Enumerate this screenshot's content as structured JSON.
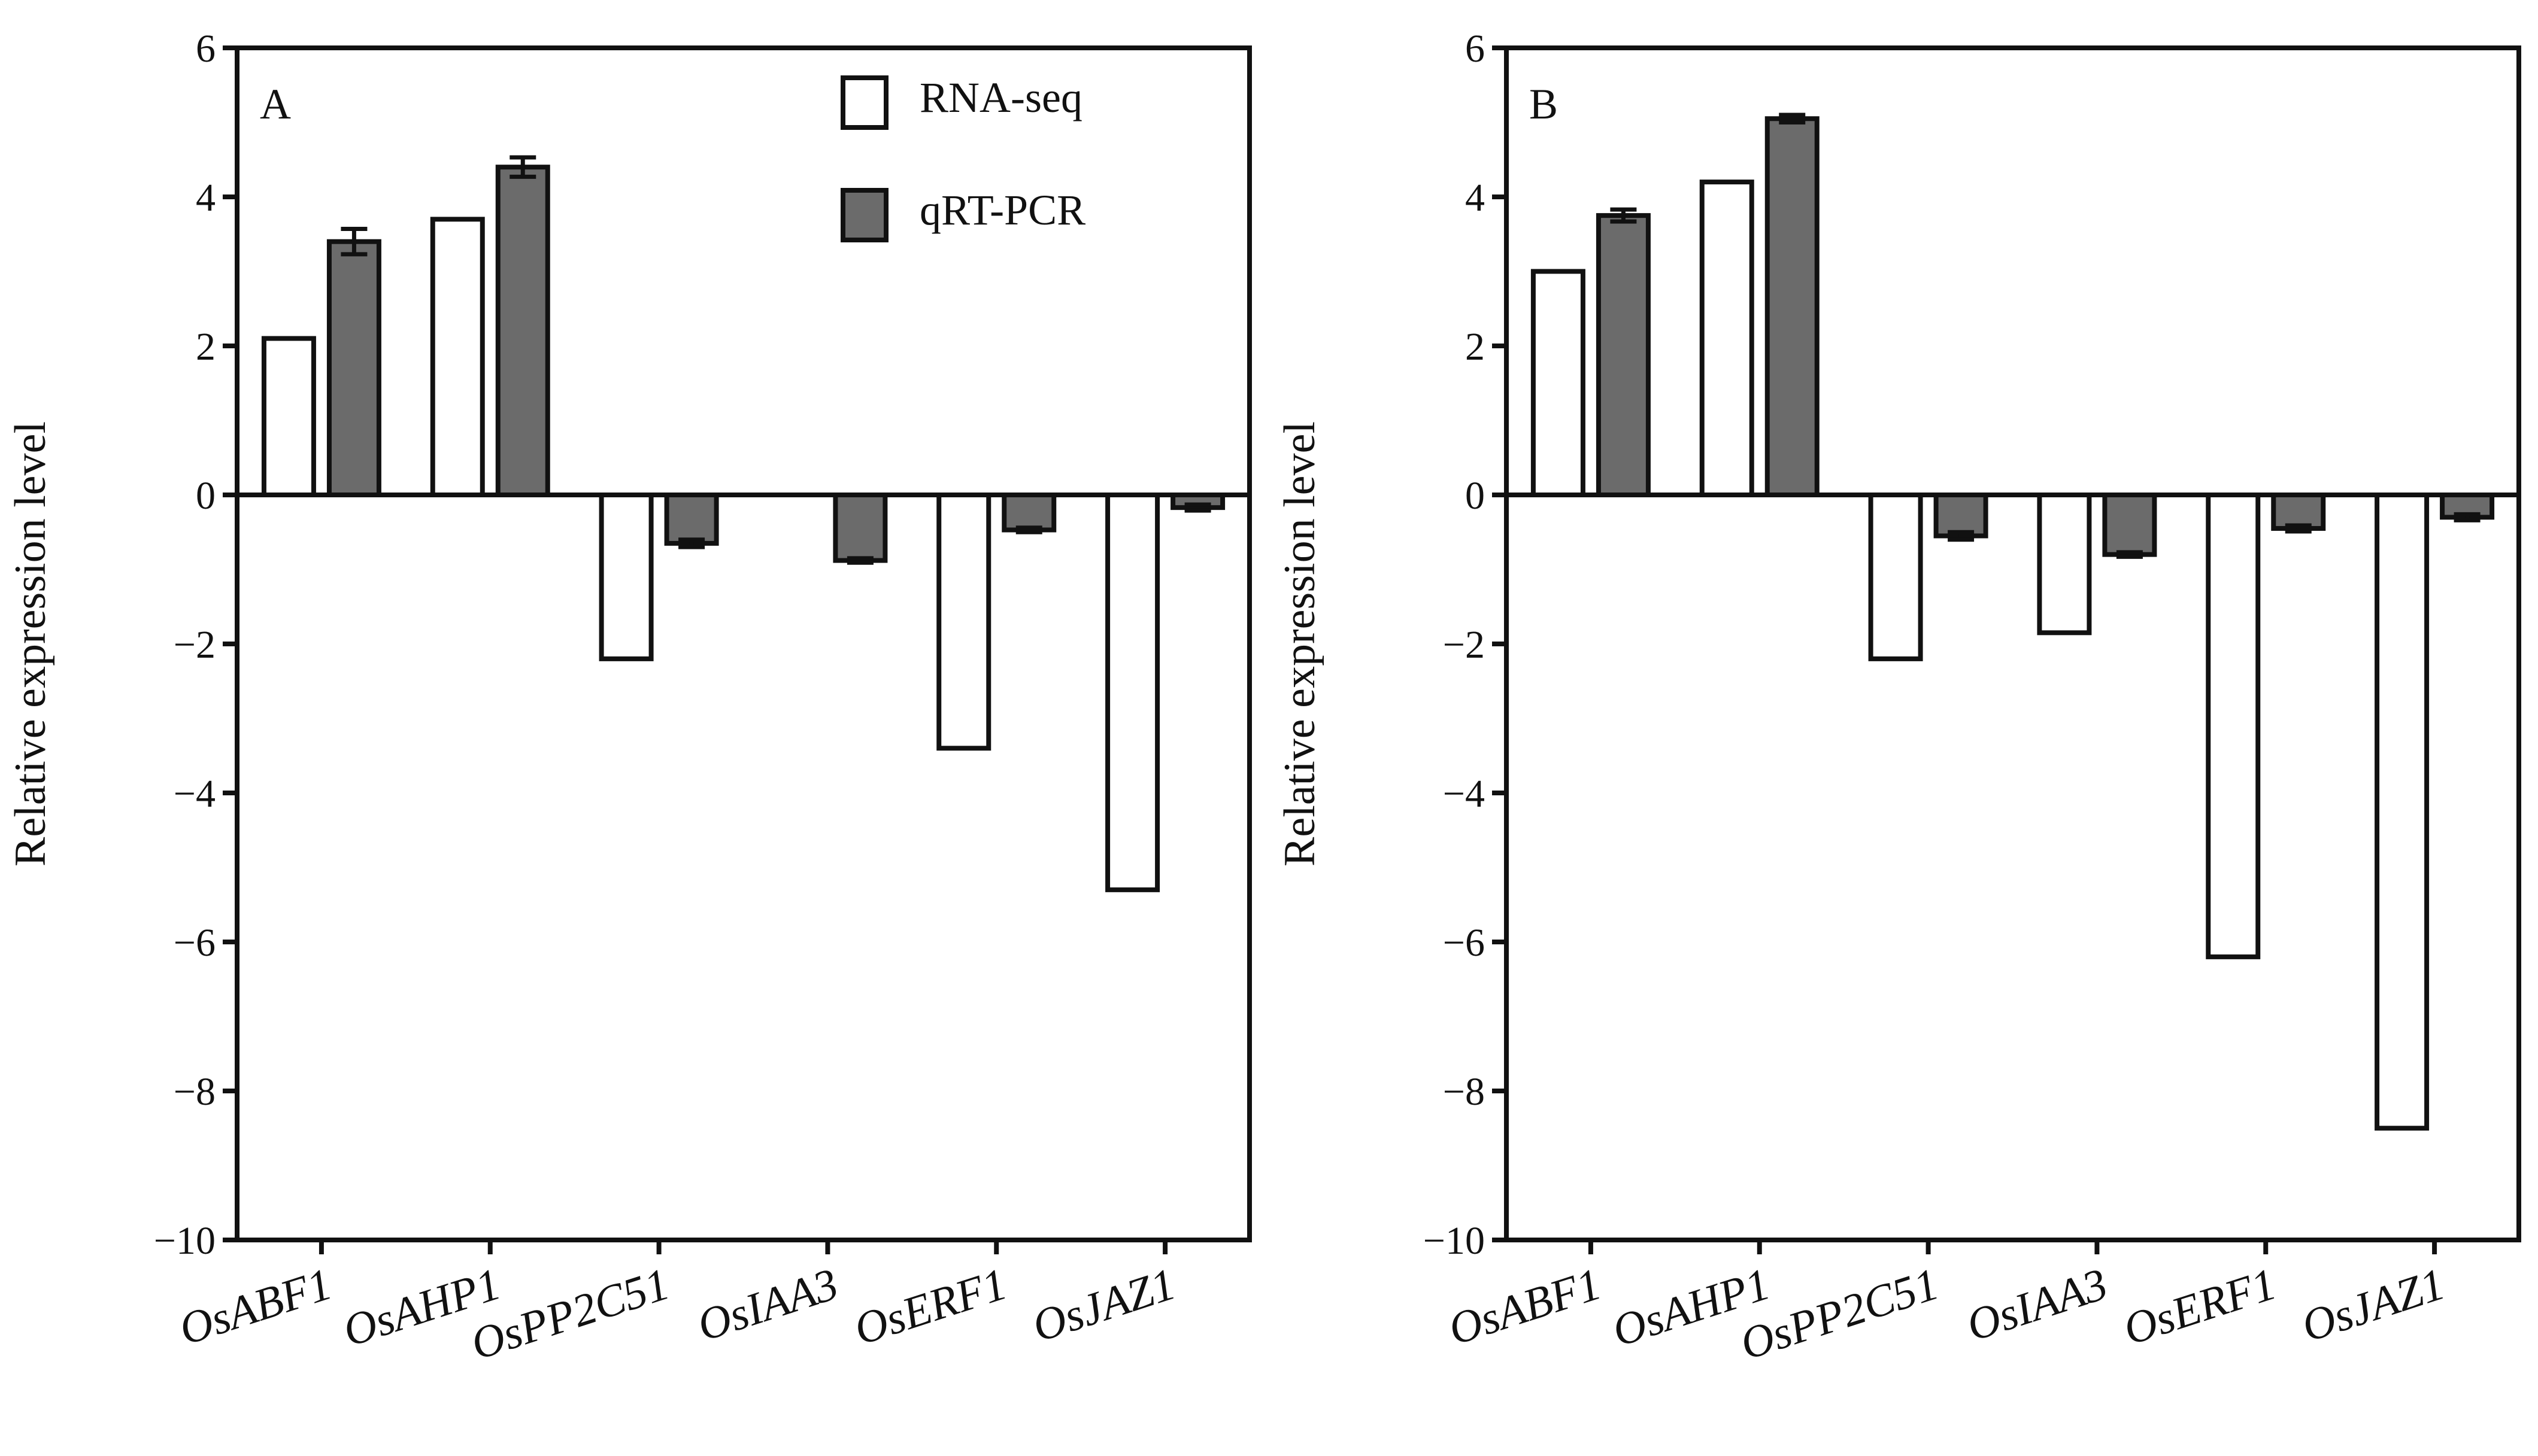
{
  "chart_data": [
    {
      "type": "bar",
      "panel_label": "A",
      "ylabel": "Relative expression level",
      "xlabel": "",
      "ylim": [
        -10,
        6
      ],
      "yticks": [
        6,
        4,
        2,
        0,
        -2,
        -4,
        -6,
        -8,
        -10
      ],
      "ytick_labels": [
        "6",
        "4",
        "2",
        "0",
        "−2",
        "−4",
        "−6",
        "−8",
        "−10"
      ],
      "categories": [
        "OsABF1",
        "OsAHP1",
        "OsPP2C51",
        "OsIAA3",
        "OsERF1",
        "OsJAZ1"
      ],
      "series": [
        {
          "name": "RNA-seq",
          "color": "#ffffff",
          "values": [
            2.1,
            3.7,
            -2.2,
            0,
            -3.4,
            -5.3
          ],
          "errors": [
            0,
            0,
            0,
            0,
            0,
            0
          ]
        },
        {
          "name": "qRT-PCR",
          "color": "#6b6b6b",
          "values": [
            3.4,
            4.4,
            -0.65,
            -0.88,
            -0.47,
            -0.17
          ],
          "errors": [
            0.17,
            0.13,
            0.05,
            0.03,
            0.03,
            0.04
          ]
        }
      ],
      "legend": {
        "position": "top-right",
        "entries": [
          "RNA-seq",
          "qRT-PCR"
        ]
      }
    },
    {
      "type": "bar",
      "panel_label": "B",
      "ylabel": "Relative expression level",
      "xlabel": "",
      "ylim": [
        -10,
        6
      ],
      "yticks": [
        6,
        4,
        2,
        0,
        -2,
        -4,
        -6,
        -8,
        -10
      ],
      "ytick_labels": [
        "6",
        "4",
        "2",
        "0",
        "−2",
        "−4",
        "−6",
        "−8",
        "−10"
      ],
      "categories": [
        "OsABF1",
        "OsAHP1",
        "OsPP2C51",
        "OsIAA3",
        "OsERF1",
        "OsJAZ1"
      ],
      "series": [
        {
          "name": "RNA-seq",
          "color": "#ffffff",
          "values": [
            3.0,
            4.2,
            -2.2,
            -1.85,
            -6.2,
            -8.5
          ],
          "errors": [
            0,
            0,
            0,
            0,
            0,
            0
          ]
        },
        {
          "name": "qRT-PCR",
          "color": "#6b6b6b",
          "values": [
            3.75,
            5.05,
            -0.55,
            -0.8,
            -0.45,
            -0.3
          ],
          "errors": [
            0.08,
            0.05,
            0.05,
            0.03,
            0.04,
            0.04
          ]
        }
      ],
      "legend": null
    }
  ]
}
